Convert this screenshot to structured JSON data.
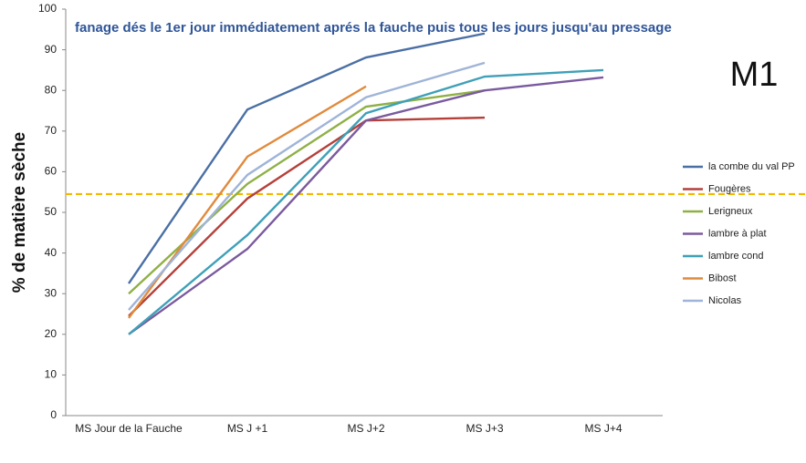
{
  "chart_data": {
    "type": "line",
    "title": "fanage dés le 1er jour immédiatement aprés la fauche puis tous les jours jusqu'au pressage",
    "annotation": "M1",
    "y_label": "% de matière sèche",
    "categories": [
      "MS Jour de la Fauche",
      "MS J +1",
      "MS J+2",
      "MS J+3",
      "MS J+4"
    ],
    "series": [
      {
        "name": "la combe du val PP",
        "color": "#4a6fa5",
        "values": [
          32.5,
          75.3,
          88.1,
          94,
          null
        ]
      },
      {
        "name": "Fougères",
        "color": "#b5403a",
        "values": [
          24.5,
          53.4,
          72.6,
          73.3,
          null
        ]
      },
      {
        "name": "Lerigneux",
        "color": "#8fb045",
        "values": [
          30,
          57,
          76,
          80,
          null
        ]
      },
      {
        "name": "lambre à plat",
        "color": "#7a5a9e",
        "values": [
          20,
          41,
          72.6,
          80,
          83.2
        ]
      },
      {
        "name": "lambre cond",
        "color": "#3fa0b8",
        "values": [
          20,
          44.4,
          74.4,
          83.4,
          85
        ]
      },
      {
        "name": "Bibost",
        "color": "#e08a3c",
        "values": [
          24,
          63.7,
          81,
          null,
          null
        ]
      },
      {
        "name": "Nicolas",
        "color": "#9fb4d8",
        "values": [
          26,
          59.2,
          78.3,
          86.8,
          null
        ]
      }
    ],
    "reference_line": {
      "value": 54.5,
      "color": "#f5b800"
    },
    "ylim": [
      0,
      100
    ],
    "yticks": [
      0,
      10,
      20,
      30,
      40,
      50,
      60,
      70,
      80,
      90,
      100
    ],
    "grid": false,
    "legend": "right"
  }
}
